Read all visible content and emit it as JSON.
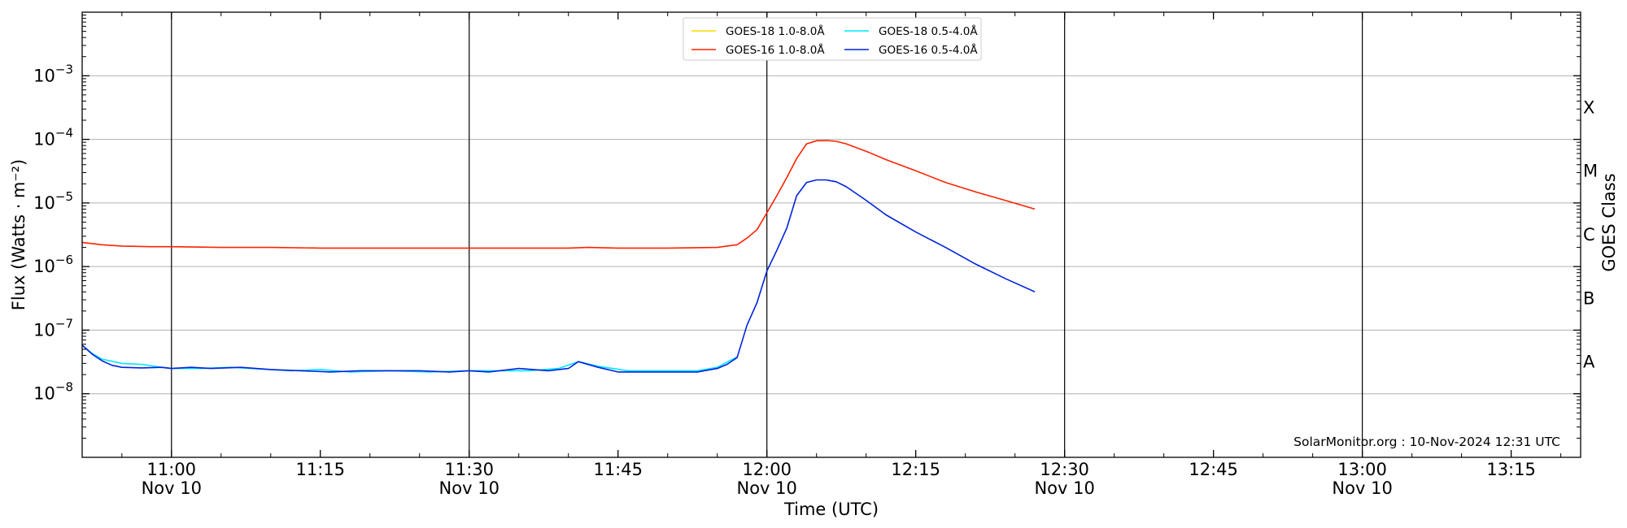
{
  "chart_data": {
    "type": "line",
    "title": "",
    "xlabel": "Time (UTC)",
    "ylabel": "Flux (Watts · m⁻²)",
    "ylabel_right": "GOES Class",
    "y_scale": "log",
    "ylim": [
      1e-09,
      0.01
    ],
    "xlim": [
      "2024-11-10 10:51",
      "2024-11-10 13:22"
    ],
    "x_ticks": [
      {
        "x": "2024-11-10 11:00",
        "label": "11:00",
        "sublabel": "Nov 10"
      },
      {
        "x": "2024-11-10 11:15",
        "label": "11:15",
        "sublabel": ""
      },
      {
        "x": "2024-11-10 11:30",
        "label": "11:30",
        "sublabel": "Nov 10"
      },
      {
        "x": "2024-11-10 11:45",
        "label": "11:45",
        "sublabel": ""
      },
      {
        "x": "2024-11-10 12:00",
        "label": "12:00",
        "sublabel": "Nov 10"
      },
      {
        "x": "2024-11-10 12:15",
        "label": "12:15",
        "sublabel": ""
      },
      {
        "x": "2024-11-10 12:30",
        "label": "12:30",
        "sublabel": "Nov 10"
      },
      {
        "x": "2024-11-10 12:45",
        "label": "12:45",
        "sublabel": ""
      },
      {
        "x": "2024-11-10 13:00",
        "label": "13:00",
        "sublabel": "Nov 10"
      },
      {
        "x": "2024-11-10 13:15",
        "label": "13:15",
        "sublabel": ""
      }
    ],
    "day_lines": [
      "2024-11-10 11:00",
      "2024-11-10 11:30",
      "2024-11-10 12:00",
      "2024-11-10 12:30",
      "2024-11-10 13:00"
    ],
    "y_ticks": [
      {
        "value": 1e-08,
        "base": "10",
        "exp": "−8"
      },
      {
        "value": 1e-07,
        "base": "10",
        "exp": "−7"
      },
      {
        "value": 1e-06,
        "base": "10",
        "exp": "−6"
      },
      {
        "value": 1e-05,
        "base": "10",
        "exp": "−5"
      },
      {
        "value": 0.0001,
        "base": "10",
        "exp": "−4"
      },
      {
        "value": 0.001,
        "base": "10",
        "exp": "−3"
      }
    ],
    "goes_classes": [
      {
        "label": "A",
        "value": 3.16e-08
      },
      {
        "label": "B",
        "value": 3.16e-07
      },
      {
        "label": "C",
        "value": 3.16e-06
      },
      {
        "label": "M",
        "value": 3.16e-05
      },
      {
        "label": "X",
        "value": 0.000316
      }
    ],
    "grid": true,
    "legend": "top-center",
    "credit": "SolarMonitor.org : 10-Nov-2024 12:31 UTC",
    "series": [
      {
        "name": "GOES-18 1.0-8.0Å",
        "color": "#ffd700",
        "x": [],
        "y": []
      },
      {
        "name": "GOES-18 0.5-4.0Å",
        "color": "#00e5ff",
        "x": [
          "2024-11-10 10:51",
          "2024-11-10 10:52",
          "2024-11-10 10:53",
          "2024-11-10 10:55",
          "2024-11-10 10:57",
          "2024-11-10 10:59",
          "2024-11-10 11:00",
          "2024-11-10 11:03",
          "2024-11-10 11:06",
          "2024-11-10 11:08",
          "2024-11-10 11:12",
          "2024-11-10 11:15",
          "2024-11-10 11:18",
          "2024-11-10 11:22",
          "2024-11-10 11:26",
          "2024-11-10 11:30",
          "2024-11-10 11:33",
          "2024-11-10 11:36",
          "2024-11-10 11:39",
          "2024-11-10 11:41",
          "2024-11-10 11:43",
          "2024-11-10 11:46",
          "2024-11-10 11:49",
          "2024-11-10 11:53",
          "2024-11-10 11:55",
          "2024-11-10 11:57"
        ],
        "y": [
          5.8e-08,
          4.3e-08,
          3.5e-08,
          3e-08,
          2.9e-08,
          2.6e-08,
          2.5e-08,
          2.5e-08,
          2.6e-08,
          2.5e-08,
          2.3e-08,
          2.4e-08,
          2.2e-08,
          2.3e-08,
          2.2e-08,
          2.3e-08,
          2.3e-08,
          2.3e-08,
          2.5e-08,
          3.2e-08,
          2.7e-08,
          2.3e-08,
          2.3e-08,
          2.3e-08,
          2.6e-08,
          3.8e-08
        ]
      },
      {
        "name": "GOES-16 1.0-8.0Å",
        "color": "#ff2200",
        "x": [
          "2024-11-10 10:51",
          "2024-11-10 10:53",
          "2024-11-10 10:55",
          "2024-11-10 10:58",
          "2024-11-10 11:00",
          "2024-11-10 11:05",
          "2024-11-10 11:10",
          "2024-11-10 11:15",
          "2024-11-10 11:20",
          "2024-11-10 11:25",
          "2024-11-10 11:30",
          "2024-11-10 11:35",
          "2024-11-10 11:40",
          "2024-11-10 11:42",
          "2024-11-10 11:45",
          "2024-11-10 11:50",
          "2024-11-10 11:55",
          "2024-11-10 11:57",
          "2024-11-10 11:58",
          "2024-11-10 11:59",
          "2024-11-10 12:00",
          "2024-11-10 12:01",
          "2024-11-10 12:02",
          "2024-11-10 12:03",
          "2024-11-10 12:04",
          "2024-11-10 12:05",
          "2024-11-10 12:06",
          "2024-11-10 12:07",
          "2024-11-10 12:08",
          "2024-11-10 12:10",
          "2024-11-10 12:12",
          "2024-11-10 12:15",
          "2024-11-10 12:18",
          "2024-11-10 12:21",
          "2024-11-10 12:24",
          "2024-11-10 12:27"
        ],
        "y": [
          2.4e-06,
          2.2e-06,
          2.1e-06,
          2.05e-06,
          2.05e-06,
          2e-06,
          2e-06,
          1.95e-06,
          1.95e-06,
          1.95e-06,
          1.95e-06,
          1.95e-06,
          1.95e-06,
          2e-06,
          1.95e-06,
          1.95e-06,
          2e-06,
          2.2e-06,
          2.8e-06,
          3.8e-06,
          7e-06,
          1.3e-05,
          2.5e-05,
          5e-05,
          8.5e-05,
          9.5e-05,
          9.6e-05,
          9.3e-05,
          8.5e-05,
          6.5e-05,
          4.8e-05,
          3.2e-05,
          2.1e-05,
          1.5e-05,
          1.1e-05,
          8e-06
        ]
      },
      {
        "name": "GOES-16 0.5-4.0Å",
        "color": "#0022dd",
        "x": [
          "2024-11-10 10:51",
          "2024-11-10 10:52",
          "2024-11-10 10:53",
          "2024-11-10 10:54",
          "2024-11-10 10:55",
          "2024-11-10 10:57",
          "2024-11-10 10:59",
          "2024-11-10 11:00",
          "2024-11-10 11:02",
          "2024-11-10 11:04",
          "2024-11-10 11:07",
          "2024-11-10 11:10",
          "2024-11-10 11:13",
          "2024-11-10 11:16",
          "2024-11-10 11:19",
          "2024-11-10 11:22",
          "2024-11-10 11:25",
          "2024-11-10 11:28",
          "2024-11-10 11:30",
          "2024-11-10 11:32",
          "2024-11-10 11:35",
          "2024-11-10 11:38",
          "2024-11-10 11:40",
          "2024-11-10 11:41",
          "2024-11-10 11:43",
          "2024-11-10 11:45",
          "2024-11-10 11:47",
          "2024-11-10 11:50",
          "2024-11-10 11:53",
          "2024-11-10 11:55",
          "2024-11-10 11:56",
          "2024-11-10 11:57",
          "2024-11-10 11:58",
          "2024-11-10 11:59",
          "2024-11-10 12:00",
          "2024-11-10 12:01",
          "2024-11-10 12:02",
          "2024-11-10 12:03",
          "2024-11-10 12:04",
          "2024-11-10 12:05",
          "2024-11-10 12:06",
          "2024-11-10 12:07",
          "2024-11-10 12:08",
          "2024-11-10 12:10",
          "2024-11-10 12:12",
          "2024-11-10 12:15",
          "2024-11-10 12:18",
          "2024-11-10 12:21",
          "2024-11-10 12:24",
          "2024-11-10 12:27"
        ],
        "y": [
          5.8e-08,
          4.2e-08,
          3.3e-08,
          2.8e-08,
          2.6e-08,
          2.55e-08,
          2.6e-08,
          2.5e-08,
          2.6e-08,
          2.5e-08,
          2.6e-08,
          2.4e-08,
          2.3e-08,
          2.2e-08,
          2.3e-08,
          2.3e-08,
          2.3e-08,
          2.2e-08,
          2.3e-08,
          2.2e-08,
          2.5e-08,
          2.3e-08,
          2.5e-08,
          3.2e-08,
          2.6e-08,
          2.2e-08,
          2.2e-08,
          2.2e-08,
          2.2e-08,
          2.5e-08,
          2.9e-08,
          3.7e-08,
          1.2e-07,
          2.7e-07,
          8.5e-07,
          1.8e-06,
          4e-06,
          1.3e-05,
          2.1e-05,
          2.3e-05,
          2.3e-05,
          2.15e-05,
          1.8e-05,
          1.1e-05,
          6.5e-06,
          3.5e-06,
          2e-06,
          1.1e-06,
          6.5e-07,
          4e-07
        ]
      }
    ]
  }
}
